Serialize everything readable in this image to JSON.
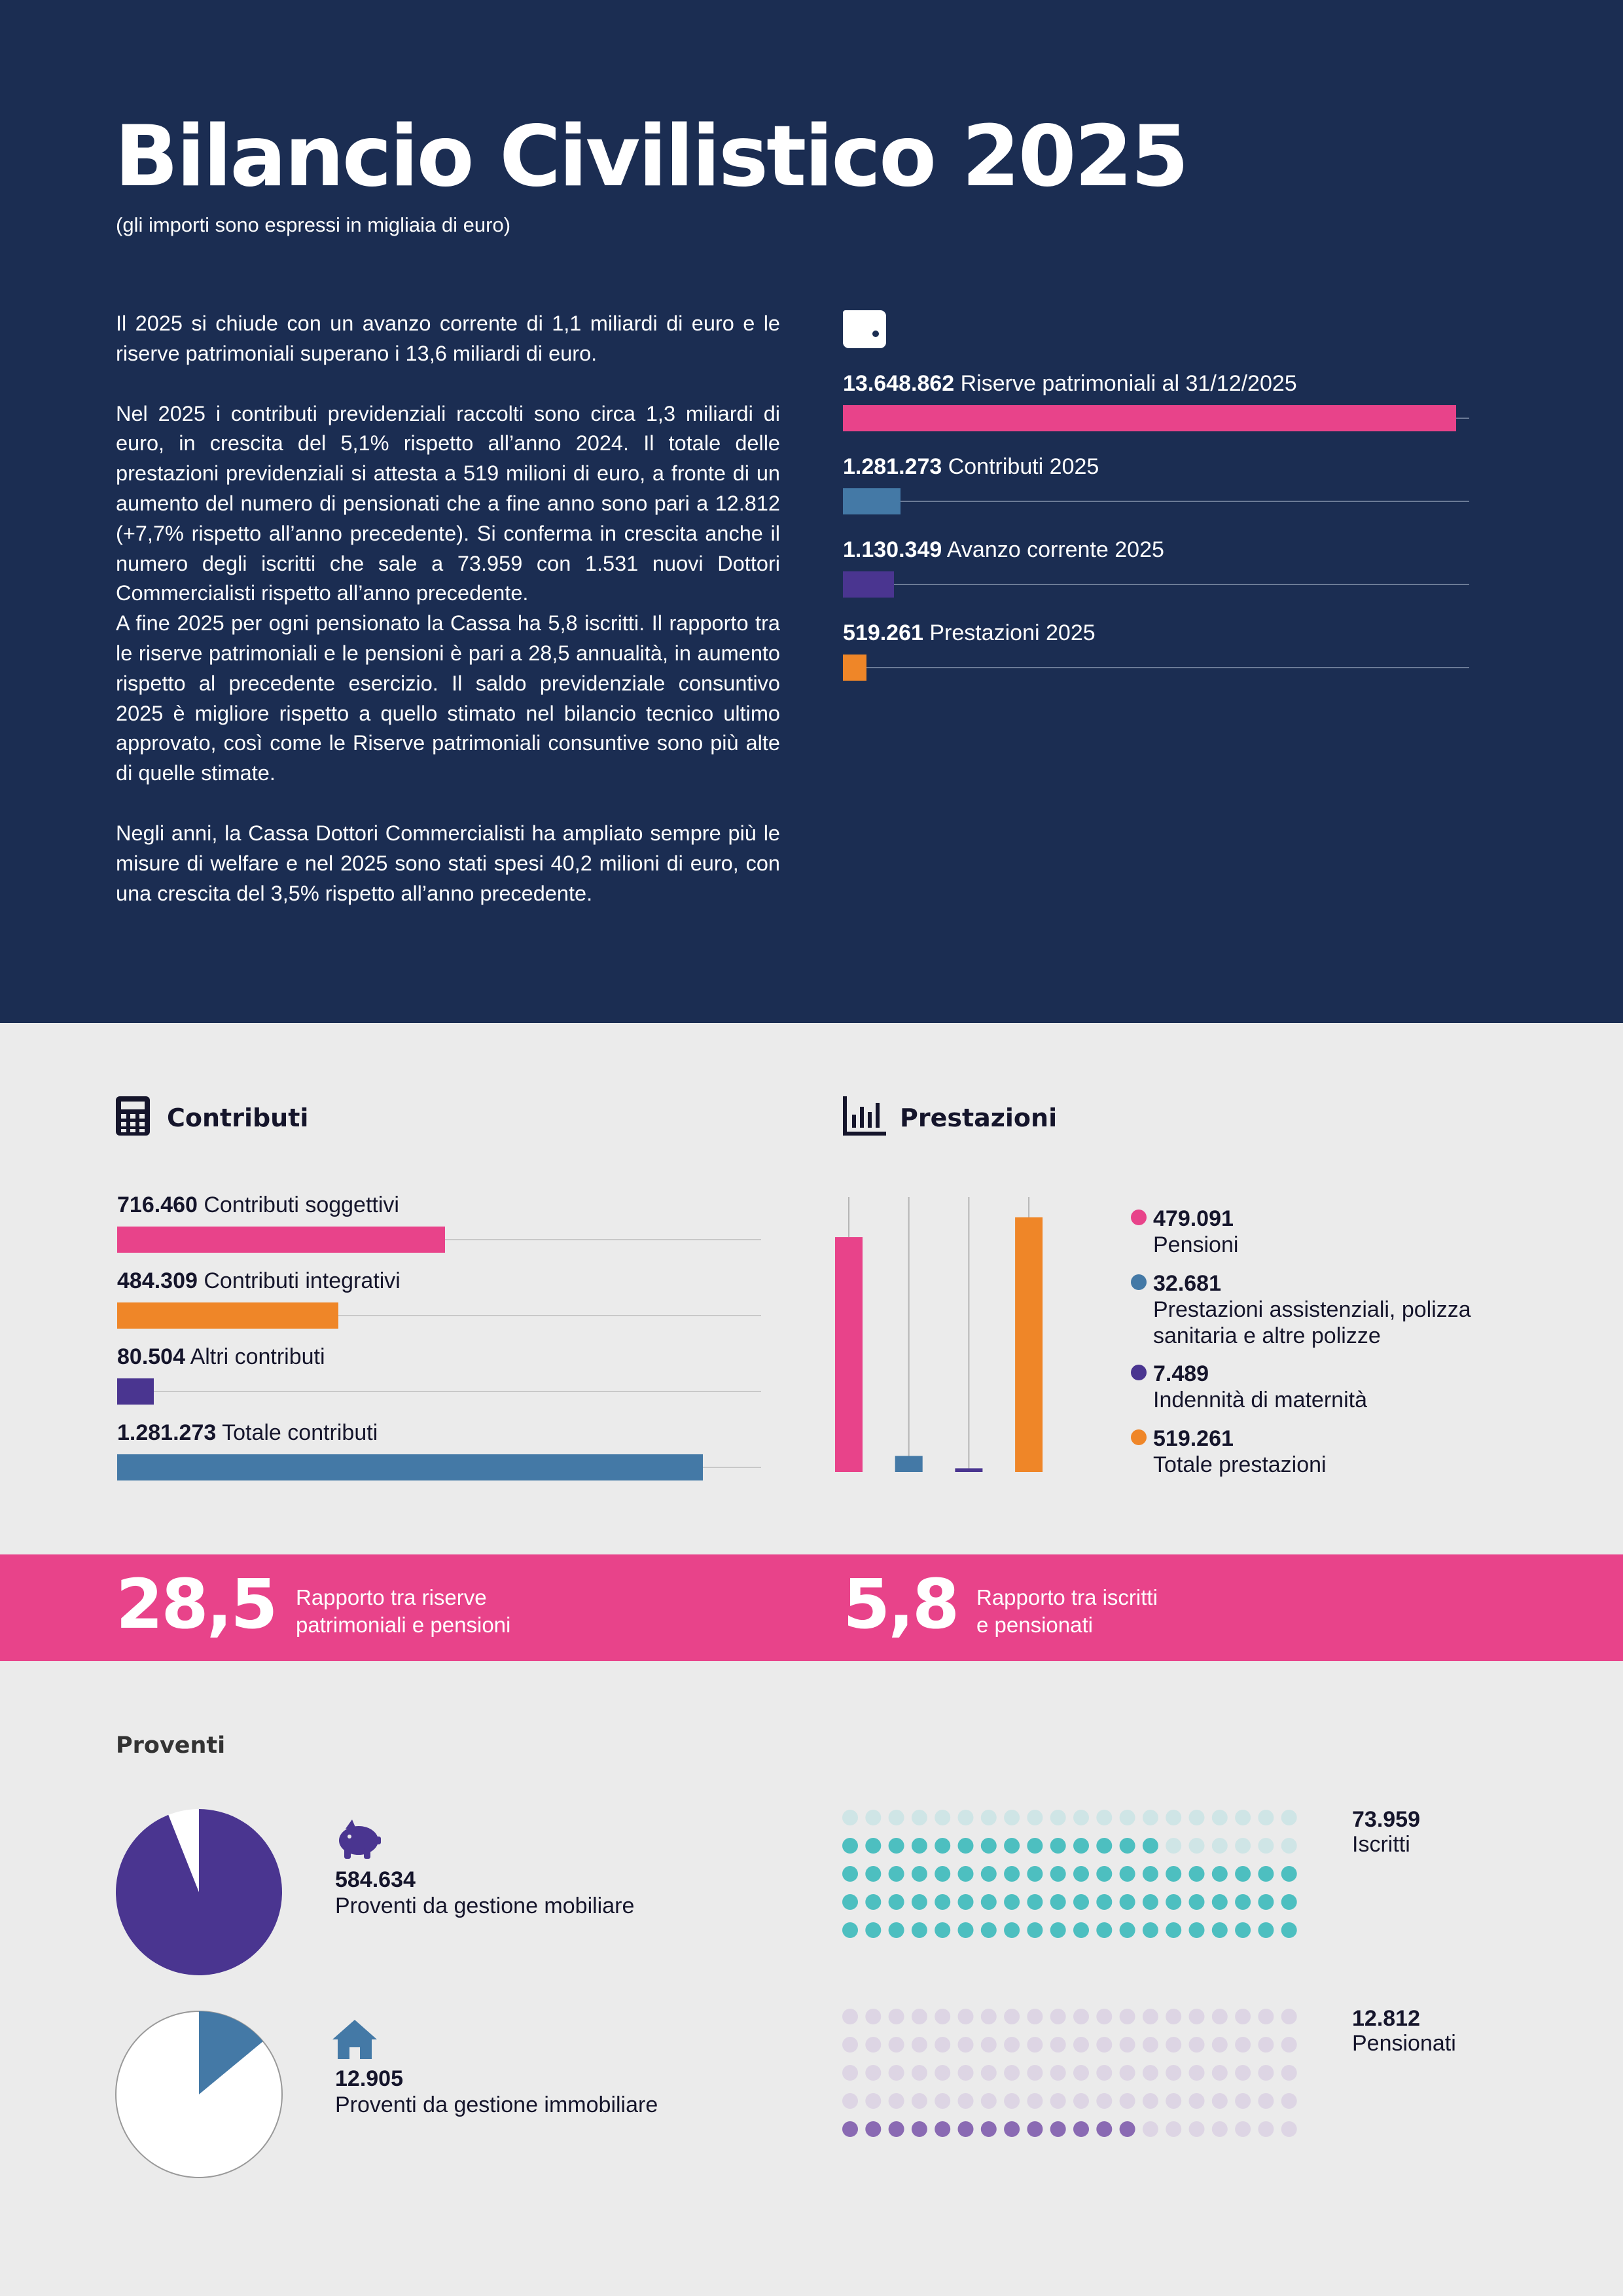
{
  "header": {
    "title": "Bilancio Civilistico 2025",
    "subtitle": "(gli importi sono espressi in migliaia di euro)"
  },
  "intro": {
    "paragraphs": [
      "Il 2025 si chiude con un avanzo corrente di 1,1 miliardi di euro e le riserve patrimoniali superano i 13,6 miliardi di euro.",
      "Nel 2025 i contributi previdenziali raccolti sono circa 1,3 miliardi di euro, in crescita del 5,1% rispetto all’anno 2024. Il totale delle prestazioni previdenziali si attesta a 519 milioni di euro, a fronte di un aumento del numero di pensionati che a fine anno sono pari a 12.812 (+7,7% rispetto all’anno precedente). Si conferma in crescita anche il numero degli iscritti che sale a 73.959 con 1.531 nuovi Dottori  Commercialisti rispetto all’anno precedente.",
      "A fine 2025 per ogni pensionato la Cassa ha 5,8 iscritti. Il rapporto tra le riserve patrimoniali e le pensioni è pari a 28,5 annualità, in aumento rispetto al precedente esercizio. Il saldo previdenziale consuntivo 2025 è migliore rispetto a quello stimato nel bilancio tecnico ultimo approvato, così come le Riserve patrimoniali consuntive sono più alte di quelle stimate.",
      "Negli anni, la Cassa Dottori Commercialisti ha ampliato sempre più le misure di welfare e nel 2025 sono stati spesi 40,2 milioni di euro, con una crescita del 3,5% rispetto all’anno precedente."
    ]
  },
  "summary": {
    "labels": [
      "Riserve patrimoniali al 31/12/2025",
      "Contributi 2025",
      "Avanzo corrente 2025",
      "Prestazioni 2025"
    ],
    "values": [
      13648862,
      1281273,
      1130349,
      519261
    ],
    "value_labels": [
      "13.648.862",
      "1.281.273",
      "1.130.349",
      "519.261"
    ],
    "colors": [
      "#e8438a",
      "#4479a6",
      "#4a3590",
      "#ef8628"
    ]
  },
  "contributi": {
    "title": "Contributi",
    "labels": [
      "Contributi soggettivi",
      "Contributi integrativi",
      "Altri contributi",
      "Totale contributi"
    ],
    "values": [
      716460,
      484309,
      80504,
      1281273
    ],
    "value_labels": [
      "716.460",
      "484.309",
      "80.504",
      "1.281.273"
    ],
    "colors": [
      "#e8438a",
      "#ef8628",
      "#4a3590",
      "#4479a6"
    ]
  },
  "prestazioni": {
    "title": "Prestazioni",
    "labels": [
      "Pensioni",
      "Prestazioni assistenziali, polizza sanitaria e altre polizze",
      "Indennità di maternità",
      "Totale prestazioni"
    ],
    "values": [
      479091,
      32681,
      7489,
      519261
    ],
    "value_labels": [
      "479.091",
      "32.681",
      "7.489",
      "519.261"
    ],
    "colors": [
      "#e8438a",
      "#4479a6",
      "#4a3590",
      "#ef8628"
    ]
  },
  "ratios": [
    {
      "value": 28.5,
      "label": "28,5",
      "text": [
        "Rapporto tra riserve",
        "patrimoniali e pensioni"
      ]
    },
    {
      "value": 5.8,
      "label": "5,8",
      "text": [
        "Rapporto tra iscritti",
        "e pensionati"
      ]
    }
  ],
  "proventi": {
    "title": "Proventi",
    "items": [
      {
        "value": 584634,
        "value_label": "584.634",
        "label": "Proventi da gestione mobiliare",
        "share": 94,
        "color": "#4a3590"
      },
      {
        "value": 12905,
        "value_label": "12.905",
        "label": "Proventi da gestione immobiliare",
        "share": 14,
        "color": "#4479a6"
      }
    ]
  },
  "people": {
    "items": [
      {
        "value": 73959,
        "value_label": "73.959",
        "label": "Iscritti",
        "color": "#4dbfc0",
        "empty_color": "#cfe5e6"
      },
      {
        "value": 12812,
        "value_label": "12.812",
        "label": "Pensionati",
        "color": "#8a6ab3",
        "empty_color": "#ddd5e4"
      }
    ]
  }
}
